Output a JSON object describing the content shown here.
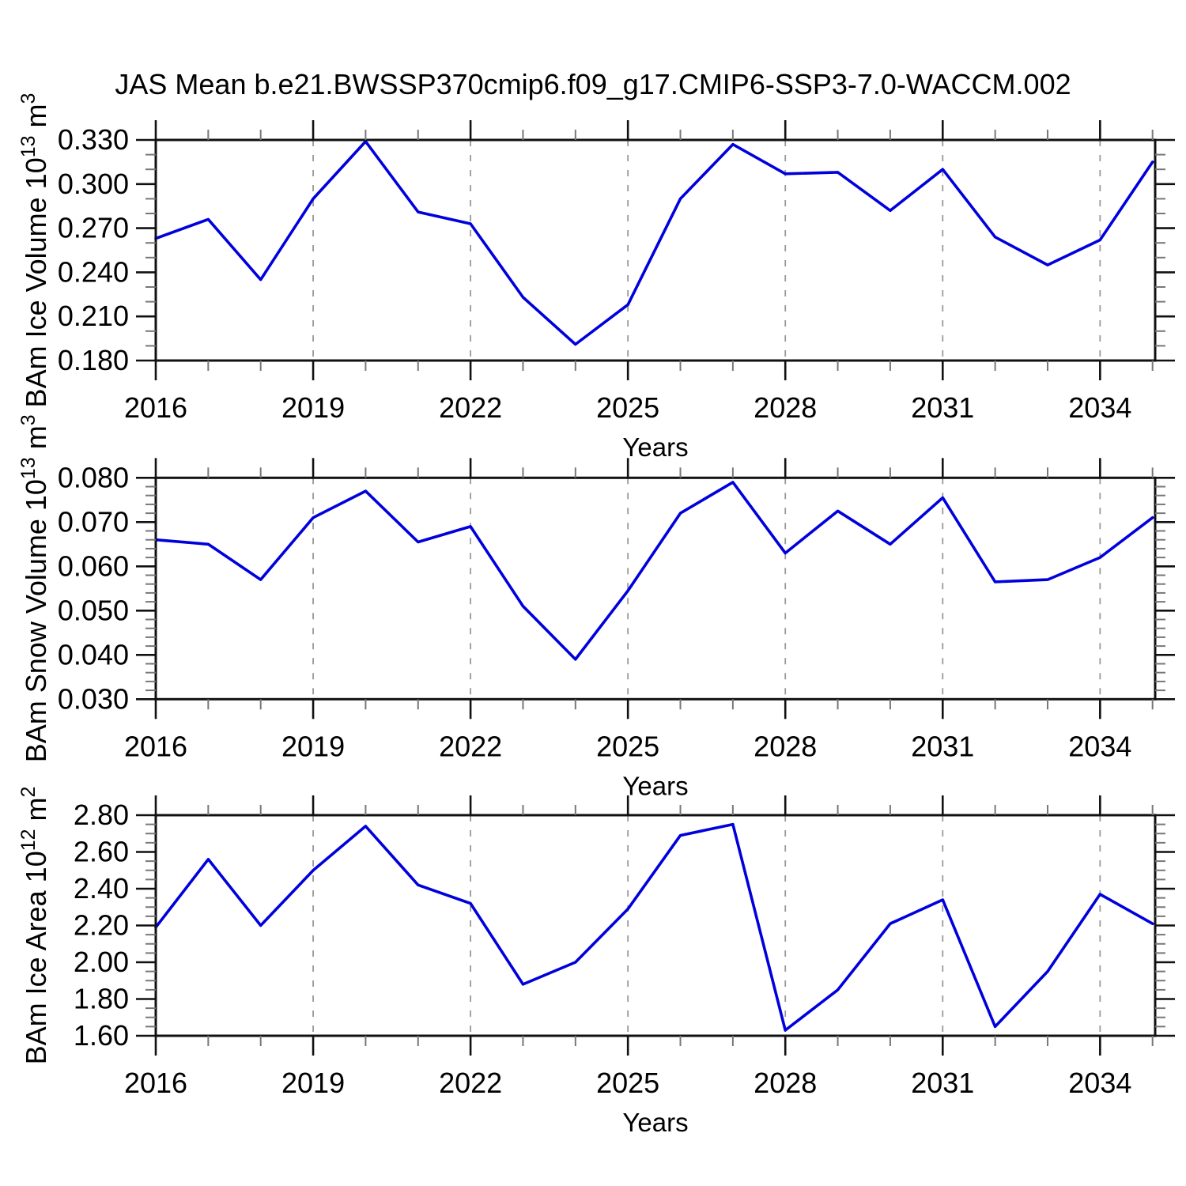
{
  "title": "JAS Mean b.e21.BWSSP370cmip6.f09_g17.CMIP6-SSP3-7.0-WACCM.002",
  "colors": {
    "line": "#0000dd",
    "grid": "#999999",
    "axis": "#111111",
    "minor_tick": "#777777",
    "text": "#000000",
    "background": "#ffffff"
  },
  "x_axis": {
    "label": "Years",
    "years": [
      2016,
      2017,
      2018,
      2019,
      2020,
      2021,
      2022,
      2023,
      2024,
      2025,
      2026,
      2027,
      2028,
      2029,
      2030,
      2031,
      2032,
      2033,
      2034,
      2035
    ],
    "major_ticks": [
      2016,
      2019,
      2022,
      2025,
      2028,
      2031,
      2034
    ],
    "major_tick_labels": [
      "2016",
      "2019",
      "2022",
      "2025",
      "2028",
      "2031",
      "2034"
    ],
    "minor_tick_step": 1,
    "gridline_years": [
      2019,
      2022,
      2025,
      2028,
      2031,
      2034
    ],
    "range": [
      2016,
      2035.05
    ]
  },
  "chart_data": [
    {
      "type": "line",
      "series_name": "BAm Ice Volume",
      "ylabel": {
        "name": "BAm Ice Volume ",
        "mantissa": "10",
        "exponent": "13",
        "unit": " m",
        "unit_exponent": "3"
      },
      "ylim": [
        0.18,
        0.33
      ],
      "ytick_values": [
        0.33,
        0.3,
        0.27,
        0.24,
        0.21,
        0.18
      ],
      "ytick_labels": [
        "0.330",
        "0.300",
        "0.270",
        "0.240",
        "0.210",
        "0.180"
      ],
      "ytick_minor_step": 0.01,
      "values": [
        0.263,
        0.276,
        0.235,
        0.29,
        0.329,
        0.281,
        0.273,
        0.223,
        0.191,
        0.218,
        0.29,
        0.327,
        0.307,
        0.308,
        0.282,
        0.31,
        0.264,
        0.245,
        0.262,
        0.315
      ]
    },
    {
      "type": "line",
      "series_name": "BAm Snow Volume",
      "ylabel": {
        "name": "BAm Snow Volume ",
        "mantissa": "10",
        "exponent": "13",
        "unit": " m",
        "unit_exponent": "3"
      },
      "ylim": [
        0.03,
        0.08
      ],
      "ytick_values": [
        0.08,
        0.07,
        0.06,
        0.05,
        0.04,
        0.03
      ],
      "ytick_labels": [
        "0.080",
        "0.070",
        "0.060",
        "0.050",
        "0.040",
        "0.030"
      ],
      "ytick_minor_step": 0.002,
      "values": [
        0.066,
        0.065,
        0.057,
        0.071,
        0.077,
        0.0655,
        0.069,
        0.051,
        0.039,
        0.0545,
        0.072,
        0.079,
        0.063,
        0.0725,
        0.065,
        0.0755,
        0.0565,
        0.057,
        0.062,
        0.071
      ]
    },
    {
      "type": "line",
      "series_name": "BAm Ice Area",
      "ylabel": {
        "name": "BAm Ice Area ",
        "mantissa": "10",
        "exponent": "12",
        "unit": " m",
        "unit_exponent": "2"
      },
      "ylim": [
        1.6,
        2.8
      ],
      "ytick_values": [
        2.8,
        2.6,
        2.4,
        2.2,
        2.0,
        1.8,
        1.6
      ],
      "ytick_labels": [
        "2.80",
        "2.60",
        "2.40",
        "2.20",
        "2.00",
        "1.80",
        "1.60"
      ],
      "ytick_minor_step": 0.05,
      "values": [
        2.19,
        2.56,
        2.2,
        2.5,
        2.74,
        2.42,
        2.32,
        1.88,
        2.0,
        2.29,
        2.69,
        2.75,
        1.63,
        1.85,
        2.21,
        2.34,
        1.65,
        1.95,
        2.37,
        2.21
      ]
    }
  ]
}
